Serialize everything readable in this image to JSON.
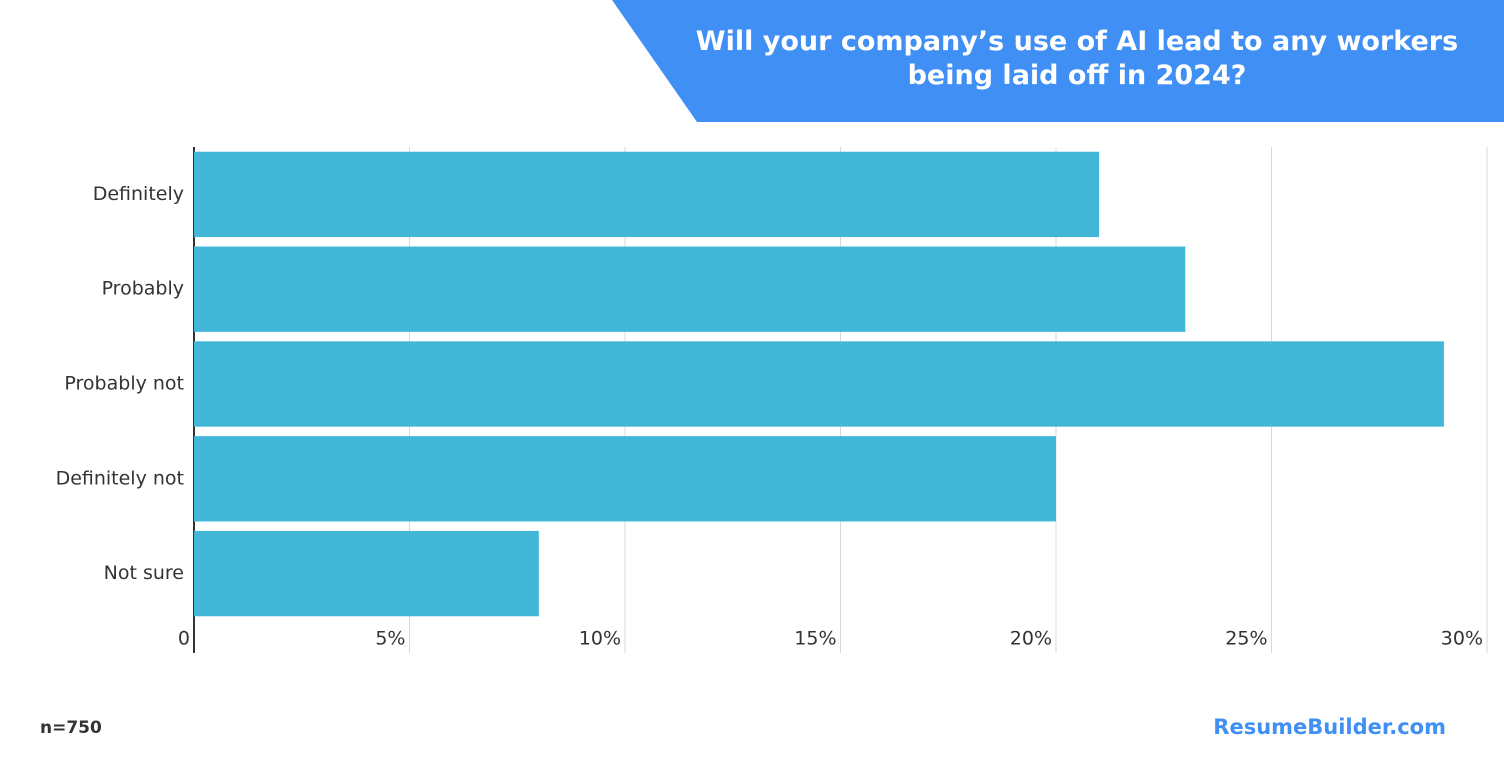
{
  "chart_data": {
    "type": "bar",
    "orientation": "horizontal",
    "title": "Will your company’s use of AI lead to any workers being laid off in 2024?",
    "categories": [
      "Definitely",
      "Probably",
      "Probably not",
      "Definitely not",
      "Not sure"
    ],
    "values": [
      21,
      23,
      29,
      20,
      8
    ],
    "color": "#42b6d6",
    "xlim": [
      0,
      30
    ],
    "xticks": [
      0,
      {
        "value": 5,
        "label": "5%"
      },
      {
        "value": 10,
        "label": "10%"
      },
      {
        "value": 15,
        "label": "15%"
      },
      {
        "value": 20,
        "label": "20%"
      },
      {
        "value": 25,
        "label": "25%"
      },
      {
        "value": 30,
        "label": "30%"
      }
    ],
    "grid": true,
    "note": "n=750",
    "source": "ResumeBuilder.com"
  }
}
